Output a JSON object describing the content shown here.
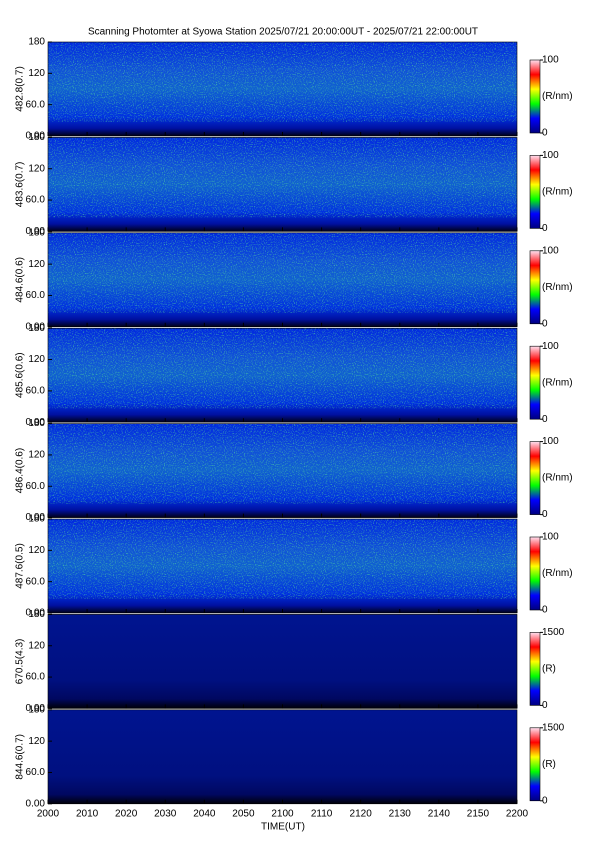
{
  "chart_data": {
    "type": "heatmap",
    "title": "Scanning Photomter at Syowa Station 2025/07/21 20:00:00UT - 2025/07/21 22:00:00UT",
    "xlabel": "TIME(UT)",
    "xlim": [
      0,
      120
    ],
    "xticks": [
      {
        "value": 0,
        "label": "2000"
      },
      {
        "value": 10,
        "label": "2010"
      },
      {
        "value": 20,
        "label": "2020"
      },
      {
        "value": 30,
        "label": "2030"
      },
      {
        "value": 40,
        "label": "2040"
      },
      {
        "value": 50,
        "label": "2050"
      },
      {
        "value": 60,
        "label": "2100"
      },
      {
        "value": 70,
        "label": "2110"
      },
      {
        "value": 80,
        "label": "2120"
      },
      {
        "value": 90,
        "label": "2130"
      },
      {
        "value": 100,
        "label": "2140"
      },
      {
        "value": 110,
        "label": "2150"
      },
      {
        "value": 120,
        "label": "2200"
      }
    ],
    "colormap": [
      "#00007f",
      "#0000ff",
      "#00ff00",
      "#ffff00",
      "#ff0000",
      "#ffe0f0"
    ],
    "panels": [
      {
        "ylabel": "482.8(0.7)",
        "ylim": [
          0,
          180
        ],
        "yticks": [
          {
            "value": 0,
            "label": "0.00"
          },
          {
            "value": 60,
            "label": "60.0"
          },
          120,
          180
        ],
        "colorbar": {
          "clim": [
            0,
            100
          ],
          "ticks": [
            0,
            100
          ],
          "label": "(R/nm)"
        }
      },
      {
        "ylabel": "483.6(0.7)",
        "ylim": [
          0,
          180
        ],
        "yticks": [
          {
            "value": 0,
            "label": "0.00"
          },
          {
            "value": 60,
            "label": "60.0"
          },
          120,
          180
        ],
        "colorbar": {
          "clim": [
            0,
            100
          ],
          "ticks": [
            0,
            100
          ],
          "label": "(R/nm)"
        }
      },
      {
        "ylabel": "484.6(0.6)",
        "ylim": [
          0,
          180
        ],
        "yticks": [
          {
            "value": 0,
            "label": "0.00"
          },
          {
            "value": 60,
            "label": "60.0"
          },
          120,
          180
        ],
        "colorbar": {
          "clim": [
            0,
            100
          ],
          "ticks": [
            0,
            100
          ],
          "label": "(R/nm)"
        }
      },
      {
        "ylabel": "485.6(0.6)",
        "ylim": [
          0,
          180
        ],
        "yticks": [
          {
            "value": 0,
            "label": "0.00"
          },
          {
            "value": 60,
            "label": "60.0"
          },
          120,
          180
        ],
        "colorbar": {
          "clim": [
            0,
            100
          ],
          "ticks": [
            0,
            100
          ],
          "label": "(R/nm)"
        }
      },
      {
        "ylabel": "486.4(0.6)",
        "ylim": [
          0,
          180
        ],
        "yticks": [
          {
            "value": 0,
            "label": "0.00"
          },
          {
            "value": 60,
            "label": "60.0"
          },
          120,
          180
        ],
        "colorbar": {
          "clim": [
            0,
            100
          ],
          "ticks": [
            0,
            100
          ],
          "label": "(R/nm)"
        }
      },
      {
        "ylabel": "487.6(0.5)",
        "ylim": [
          0,
          180
        ],
        "yticks": [
          {
            "value": 0,
            "label": "0.00"
          },
          {
            "value": 60,
            "label": "60.0"
          },
          120,
          180
        ],
        "colorbar": {
          "clim": [
            0,
            100
          ],
          "ticks": [
            0,
            100
          ],
          "label": "(R/nm)"
        }
      },
      {
        "ylabel": "670.5(4.3)",
        "ylim": [
          0,
          180
        ],
        "yticks": [
          {
            "value": 0,
            "label": "0.00"
          },
          {
            "value": 60,
            "label": "60.0"
          },
          120,
          180
        ],
        "colorbar": {
          "clim": [
            0,
            1500
          ],
          "ticks": [
            0,
            1500
          ],
          "label": "(R)"
        }
      },
      {
        "ylabel": "844.6(0.7)",
        "ylim": [
          0,
          180
        ],
        "yticks": [
          {
            "value": 0,
            "label": "0.00"
          },
          {
            "value": 60,
            "label": "60.0"
          },
          120,
          180
        ],
        "colorbar": {
          "clim": [
            0,
            1500
          ],
          "ticks": [
            0,
            1500
          ],
          "label": "(R)"
        }
      }
    ]
  }
}
